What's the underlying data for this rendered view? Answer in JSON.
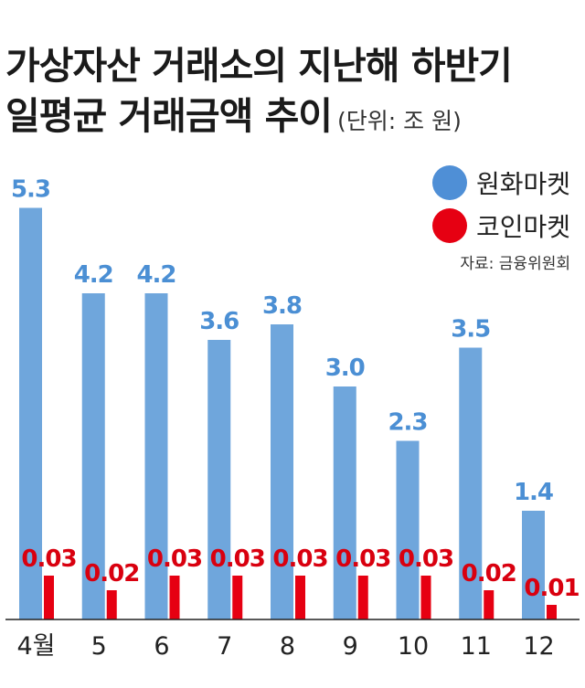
{
  "colors": {
    "won": "#6fa6dc",
    "won_dot": "#4f8fd6",
    "won_label": "#4b8fd4",
    "coin": "#e60012",
    "coin_label": "#d9000f",
    "axis": "#222222"
  },
  "chart_data": {
    "type": "bar",
    "title": "가상자산 거래소의 지난해 하반기",
    "title_line2": "일평균 거래금액 추이",
    "unit": "(단위: 조 원)",
    "source": "자료: 금융위원회",
    "xlabel": "",
    "ylabel": "",
    "categories": [
      "4월",
      "5",
      "6",
      "7",
      "8",
      "9",
      "10",
      "11",
      "12"
    ],
    "series": [
      {
        "name": "원화마켓",
        "values": [
          5.3,
          4.2,
          4.2,
          3.6,
          3.8,
          3.0,
          2.3,
          3.5,
          1.4
        ],
        "labels": [
          "5.3",
          "4.2",
          "4.2",
          "3.6",
          "3.8",
          "3.0",
          "2.3",
          "3.5",
          "1.4"
        ]
      },
      {
        "name": "코인마켓",
        "values": [
          0.03,
          0.02,
          0.03,
          0.03,
          0.03,
          0.03,
          0.03,
          0.02,
          0.01
        ],
        "labels": [
          "0.03",
          "0.02",
          "0.03",
          "0.03",
          "0.03",
          "0.03",
          "0.03",
          "0.02",
          "0.01"
        ]
      }
    ],
    "legend_position": "top-right",
    "grid": false
  }
}
